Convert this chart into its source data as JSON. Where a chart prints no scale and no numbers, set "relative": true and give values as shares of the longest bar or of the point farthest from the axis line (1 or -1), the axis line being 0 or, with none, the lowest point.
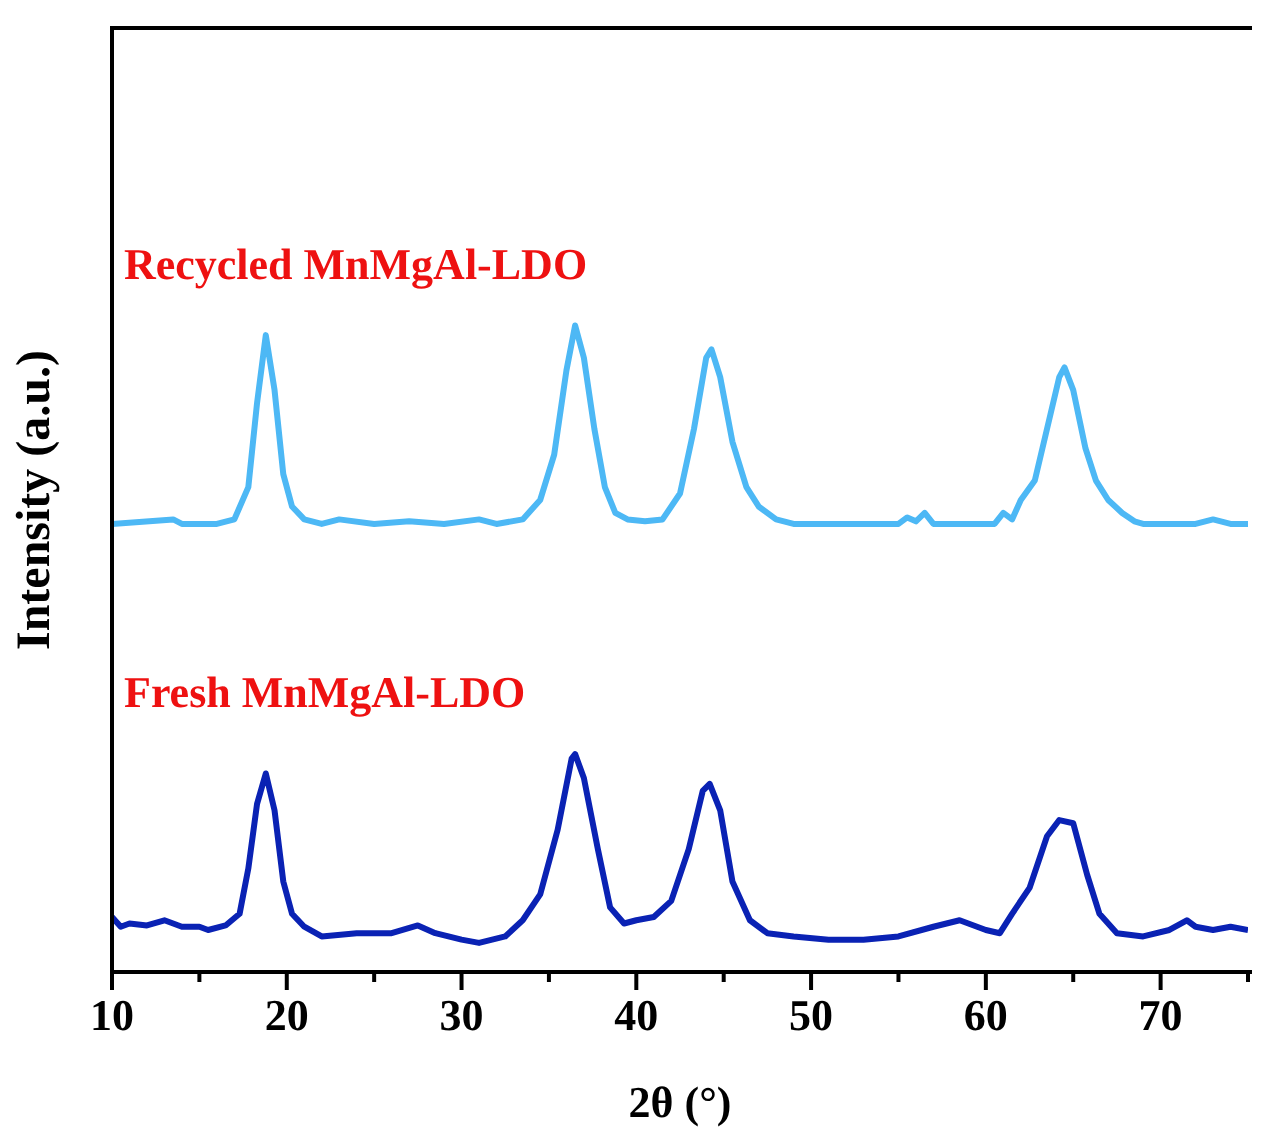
{
  "chart_data": {
    "type": "line",
    "relative": true,
    "xlabel": "2θ (°)",
    "ylabel": "Intensity (a.u.)",
    "xlim": [
      10,
      75
    ],
    "xticks": [
      10,
      {
        "value": 15,
        "label": null
      },
      20,
      {
        "value": 25,
        "label": null
      },
      30,
      {
        "value": 35,
        "label": null
      },
      40,
      {
        "value": 45,
        "label": null
      },
      50,
      {
        "value": 55,
        "label": null
      },
      60,
      {
        "value": 65,
        "label": null
      },
      70,
      {
        "value": 75,
        "label": null
      }
    ],
    "series": [
      {
        "name": "Recycled MnMgAl-LDO",
        "color": "#4db8f5",
        "x": [
          10,
          13.5,
          14,
          16,
          17,
          17.8,
          18.3,
          18.8,
          19.3,
          19.8,
          20.3,
          21,
          22,
          23,
          25,
          27,
          29,
          31,
          32,
          33.5,
          34.5,
          35.3,
          36,
          36.5,
          37,
          37.6,
          38.2,
          38.8,
          39.5,
          40.5,
          41.5,
          42.5,
          43.3,
          44,
          44.3,
          44.8,
          45.5,
          46.3,
          47,
          48,
          49,
          52,
          55,
          55.5,
          56,
          56.5,
          57,
          60.5,
          61,
          61.5,
          62,
          62.8,
          63.5,
          64.2,
          64.5,
          65,
          65.7,
          66.3,
          67,
          67.8,
          68.5,
          69,
          72,
          73,
          74,
          75
        ],
        "values": [
          0.693,
          0.7,
          0.693,
          0.693,
          0.7,
          0.75,
          0.88,
          0.985,
          0.9,
          0.77,
          0.72,
          0.7,
          0.693,
          0.7,
          0.693,
          0.697,
          0.693,
          0.7,
          0.693,
          0.7,
          0.73,
          0.8,
          0.93,
          1.0,
          0.95,
          0.84,
          0.75,
          0.71,
          0.7,
          0.697,
          0.7,
          0.74,
          0.84,
          0.95,
          0.963,
          0.92,
          0.82,
          0.75,
          0.72,
          0.7,
          0.693,
          0.693,
          0.693,
          0.703,
          0.697,
          0.71,
          0.693,
          0.693,
          0.71,
          0.7,
          0.73,
          0.76,
          0.84,
          0.92,
          0.935,
          0.9,
          0.81,
          0.76,
          0.73,
          0.71,
          0.697,
          0.693,
          0.693,
          0.7,
          0.693,
          0.693
        ]
      },
      {
        "name": "Fresh MnMgAl-LDO",
        "color": "#0a22b4",
        "x": [
          10,
          10.5,
          11,
          12,
          13,
          14,
          15,
          15.5,
          16.5,
          17.3,
          17.8,
          18.3,
          18.8,
          19.3,
          19.8,
          20.3,
          21,
          22,
          24,
          26,
          27.5,
          28.5,
          30,
          31,
          32.5,
          33.5,
          34.5,
          35.5,
          36.3,
          36.5,
          37,
          37.8,
          38.5,
          39.3,
          40,
          41,
          42,
          43,
          43.8,
          44.2,
          44.8,
          45.5,
          46.5,
          47.5,
          49,
          51,
          53,
          55,
          57,
          58.5,
          60,
          60.8,
          61.5,
          62.5,
          63.5,
          64.2,
          65,
          65.8,
          66.5,
          67.5,
          69,
          70.5,
          71.5,
          72,
          73,
          74,
          75
        ],
        "values": [
          0.085,
          0.07,
          0.075,
          0.072,
          0.08,
          0.07,
          0.07,
          0.065,
          0.072,
          0.09,
          0.16,
          0.26,
          0.307,
          0.25,
          0.14,
          0.09,
          0.07,
          0.055,
          0.06,
          0.06,
          0.072,
          0.06,
          0.05,
          0.045,
          0.055,
          0.08,
          0.12,
          0.22,
          0.33,
          0.337,
          0.3,
          0.19,
          0.1,
          0.075,
          0.08,
          0.085,
          0.11,
          0.19,
          0.28,
          0.291,
          0.25,
          0.14,
          0.08,
          0.06,
          0.055,
          0.05,
          0.05,
          0.055,
          0.07,
          0.08,
          0.065,
          0.06,
          0.09,
          0.13,
          0.21,
          0.235,
          0.23,
          0.15,
          0.09,
          0.06,
          0.055,
          0.065,
          0.08,
          0.07,
          0.065,
          0.07,
          0.065
        ]
      }
    ]
  }
}
